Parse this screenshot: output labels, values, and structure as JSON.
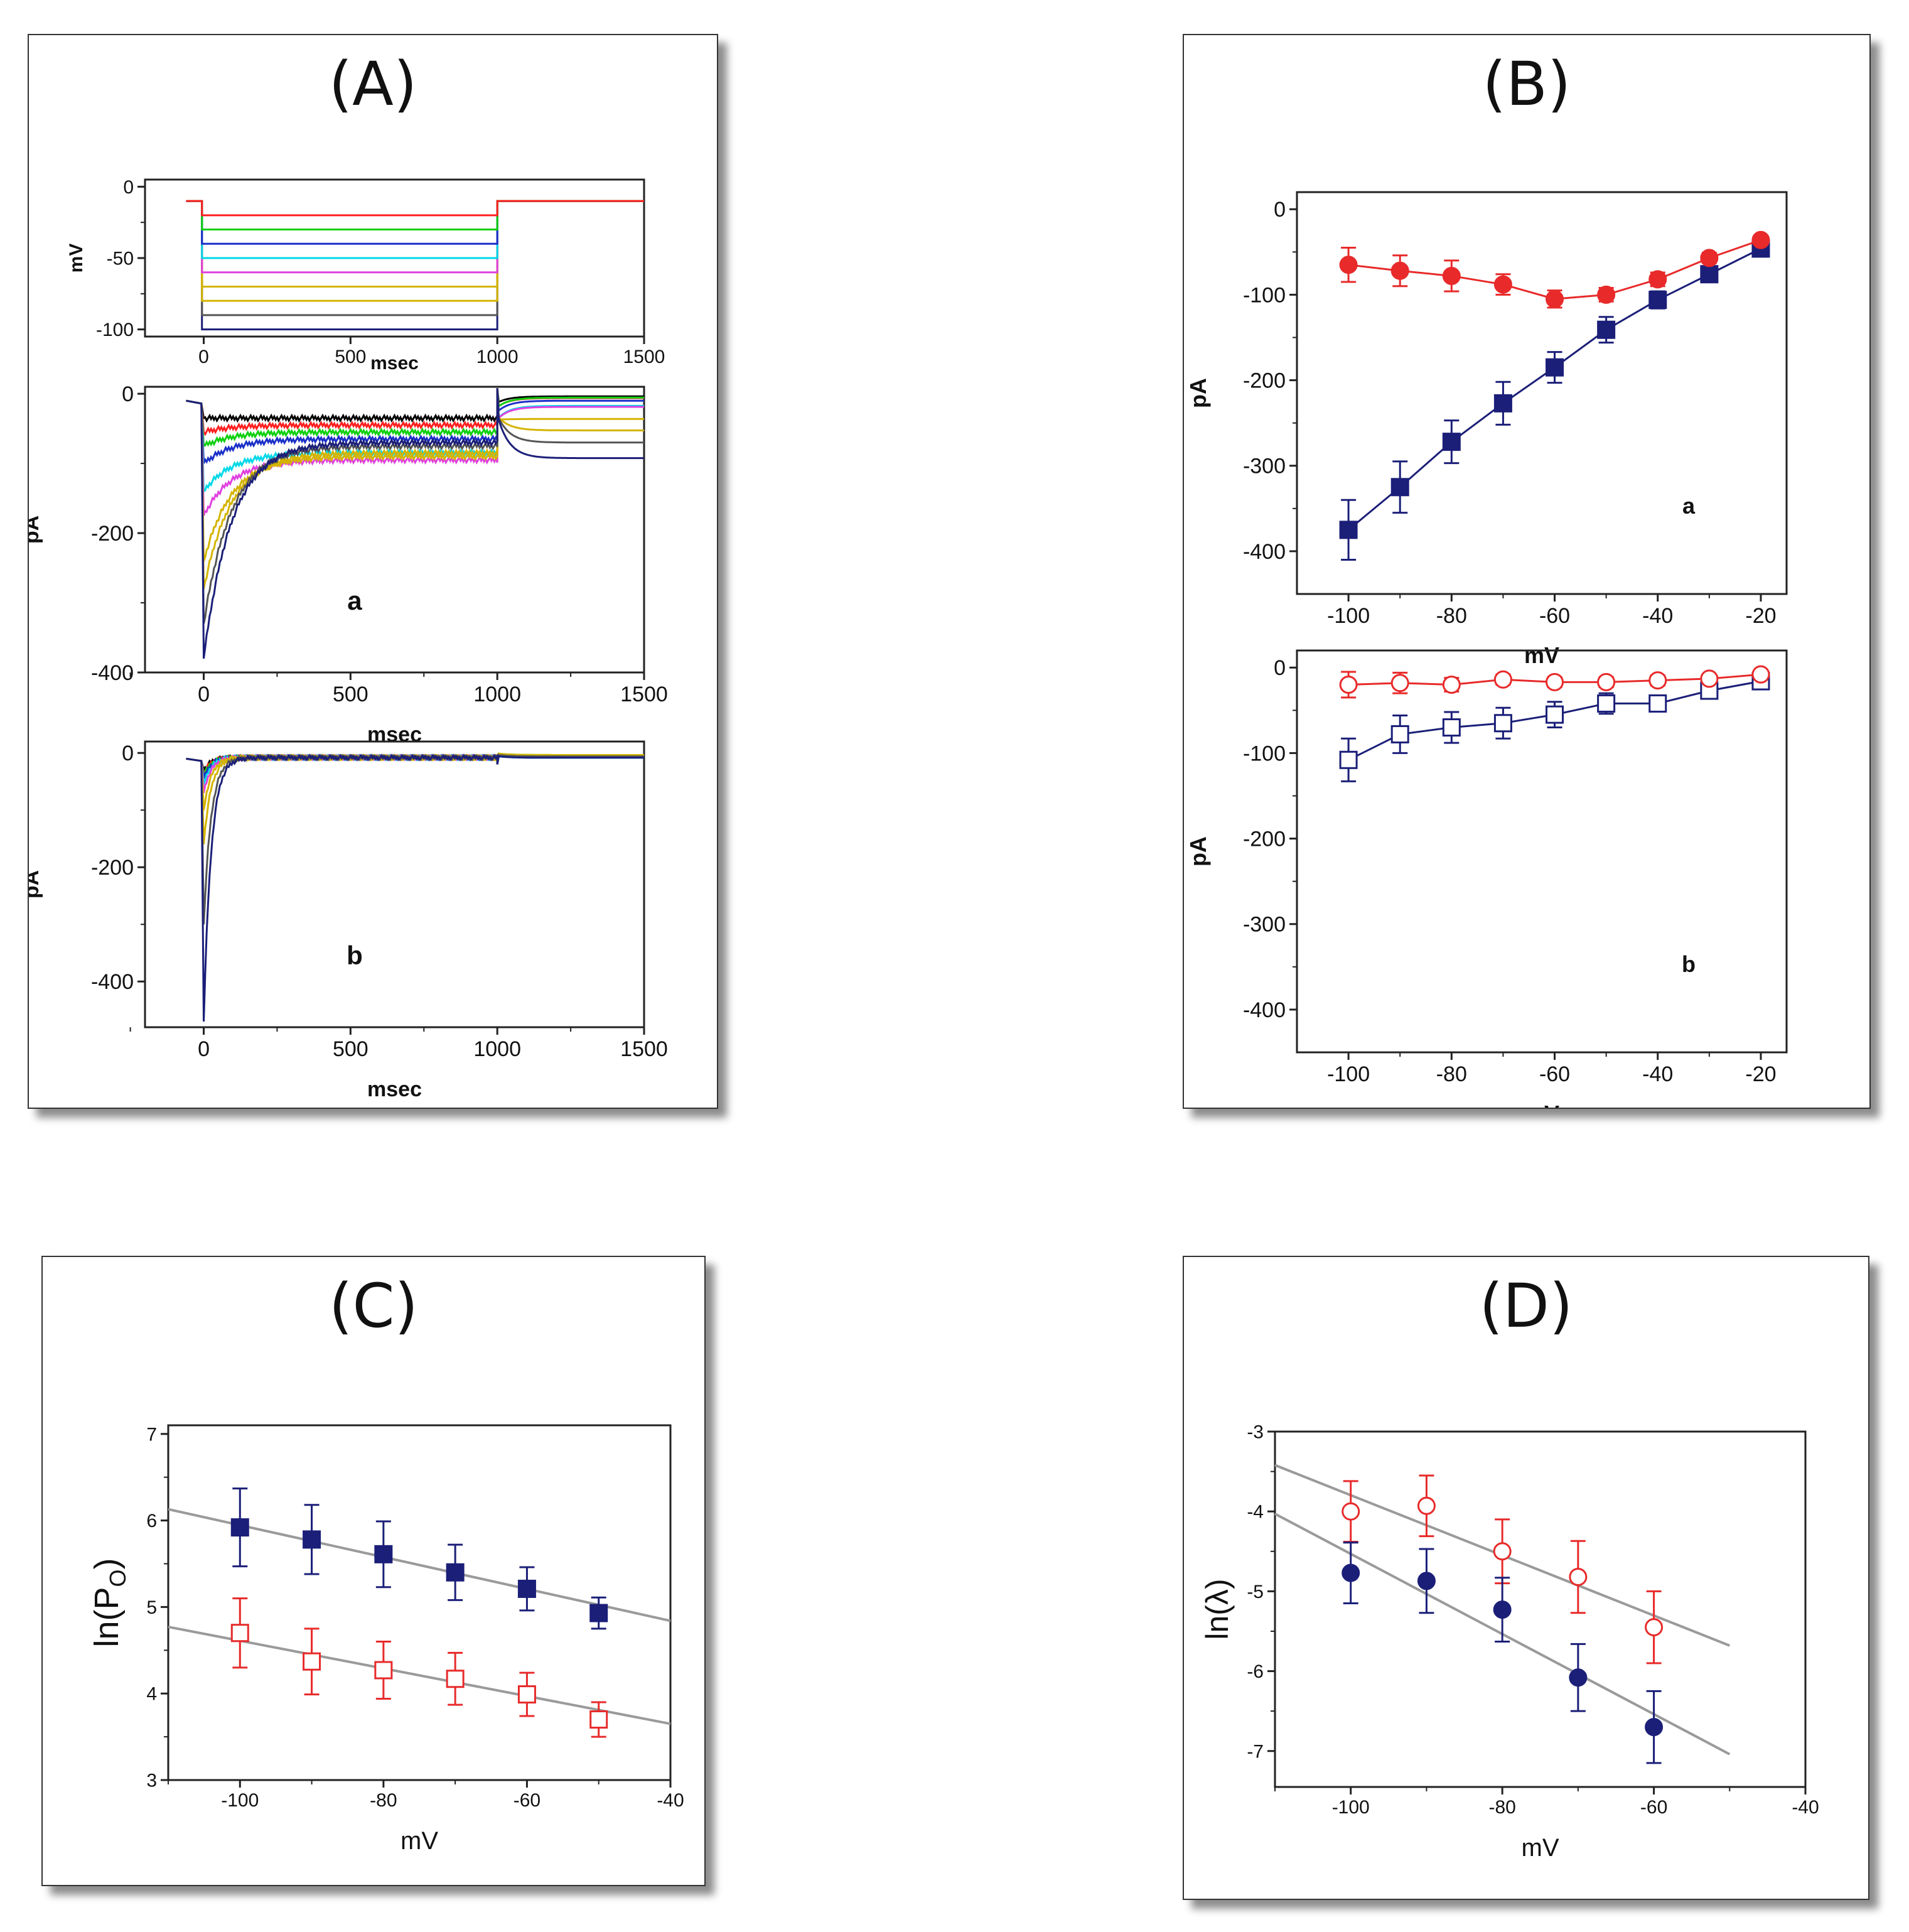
{
  "colors": {
    "navy": "#1b1f78",
    "red": "#e82a2a",
    "gray": "#9a9a9a",
    "axis": "#222222"
  },
  "panelA": {
    "title": "(A)",
    "trace_colors": [
      "#1b1f78",
      "#555555",
      "#d4b400",
      "#d4b400",
      "#e040e0",
      "#00d8e8",
      "#1b30c8",
      "#10d010",
      "#ff2020",
      "#000000"
    ],
    "top": {
      "type": "line",
      "xlabel": "msec",
      "ylabel": "mV",
      "xlim": [
        -200,
        1500
      ],
      "ylim": [
        -105,
        5
      ],
      "xticks": [
        "0",
        "500",
        "1000",
        "1500"
      ],
      "yticks": [
        "0",
        "-50",
        "-100"
      ],
      "holding_potential": -10,
      "step_start": 0,
      "step_end": 1000,
      "step_levels": [
        -100,
        -90,
        -80,
        -70,
        -60,
        -50,
        -40,
        -30,
        -20
      ]
    },
    "a": {
      "type": "line",
      "label": "a",
      "xlabel": "msec",
      "ylabel": "pA",
      "xlim": [
        -200,
        1500
      ],
      "ylim": [
        -400,
        10
      ],
      "xticks": [
        "0",
        "500",
        "1000",
        "1500"
      ],
      "yticks": [
        "0",
        "-200",
        "-400"
      ],
      "peak_current": [
        -380,
        -330,
        -280,
        -240,
        -175,
        -140,
        -100,
        -75,
        -55,
        -35
      ],
      "steady_current": [
        -70,
        -75,
        -85,
        -90,
        -95,
        -85,
        -65,
        -55,
        -45,
        -35
      ],
      "tail_current": [
        -90,
        -70,
        -55,
        -35,
        -20,
        -15,
        -10,
        -8,
        -5,
        -5
      ]
    },
    "b": {
      "type": "line",
      "label": "b",
      "xlabel": "msec",
      "ylabel": "pA",
      "xlim": [
        -200,
        1500
      ],
      "ylim": [
        -480,
        20
      ],
      "xticks": [
        "0",
        "500",
        "1000",
        "1500"
      ],
      "yticks": [
        "0",
        "-200",
        "-400"
      ],
      "peak_current": [
        -470,
        -300,
        -160,
        -100,
        -70,
        -55,
        -45,
        -40,
        -35,
        -30
      ]
    }
  },
  "panelB": {
    "title": "(B)",
    "a": {
      "type": "line",
      "label": "a",
      "xlabel": "mV",
      "ylabel": "pA",
      "xlim": [
        -110,
        -15
      ],
      "ylim": [
        -450,
        20
      ],
      "xticks": [
        "-100",
        "-80",
        "-60",
        "-40",
        "-20"
      ],
      "yticks": [
        "0",
        "-100",
        "-200",
        "-300",
        "-400"
      ],
      "x": [
        -100,
        -90,
        -80,
        -70,
        -60,
        -50,
        -40,
        -30,
        -20
      ],
      "series": [
        {
          "color": "#1b1f78",
          "marker": "filled-square",
          "values": [
            -375,
            -325,
            -272,
            -227,
            -185,
            -141,
            -106,
            -76,
            -46
          ],
          "errors": [
            35,
            30,
            25,
            25,
            18,
            15,
            10,
            8,
            5
          ]
        },
        {
          "color": "#e82a2a",
          "marker": "filled-circle",
          "values": [
            -65,
            -72,
            -78,
            -88,
            -105,
            -100,
            -82,
            -57,
            -36
          ],
          "errors": [
            20,
            18,
            18,
            12,
            10,
            8,
            8,
            6,
            5
          ]
        }
      ]
    },
    "b": {
      "type": "line",
      "label": "b",
      "xlabel": "mV",
      "ylabel": "pA",
      "xlim": [
        -110,
        -15
      ],
      "ylim": [
        -450,
        20
      ],
      "xticks": [
        "-100",
        "-80",
        "-60",
        "-40",
        "-20"
      ],
      "yticks": [
        "0",
        "-100",
        "-200",
        "-300",
        "-400"
      ],
      "x": [
        -100,
        -90,
        -80,
        -70,
        -60,
        -50,
        -40,
        -30,
        -20
      ],
      "series": [
        {
          "color": "#1b1f78",
          "marker": "open-square",
          "values": [
            -108,
            -78,
            -70,
            -65,
            -55,
            -42,
            -42,
            -27,
            -16
          ],
          "errors": [
            25,
            22,
            18,
            18,
            15,
            12,
            8,
            6,
            5
          ]
        },
        {
          "color": "#e82a2a",
          "marker": "open-circle",
          "values": [
            -20,
            -18,
            -20,
            -14,
            -17,
            -17,
            -15,
            -13,
            -8
          ],
          "errors": [
            15,
            12,
            8,
            6,
            6,
            6,
            6,
            5,
            4
          ]
        }
      ]
    }
  },
  "panelC": {
    "title": "(C)",
    "type": "scatter",
    "xlabel": "mV",
    "ylabel_prefix": "ln(P",
    "ylabel_sub": "O",
    "ylabel_suffix": ")",
    "xlim": [
      -110,
      -40
    ],
    "ylim": [
      3,
      7.1
    ],
    "xticks": [
      "-100",
      "-80",
      "-60",
      "-40"
    ],
    "yticks": [
      "3",
      "4",
      "5",
      "6",
      "7"
    ],
    "x": [
      -100,
      -90,
      -80,
      -70,
      -60,
      -50
    ],
    "series": [
      {
        "color": "#1b1f78",
        "marker": "filled-square",
        "values": [
          5.92,
          5.78,
          5.61,
          5.4,
          5.21,
          4.93
        ],
        "errors": [
          0.45,
          0.4,
          0.38,
          0.32,
          0.25,
          0.18
        ],
        "fit": {
          "x": [
            -110,
            -40
          ],
          "y": [
            6.13,
            4.84
          ]
        }
      },
      {
        "color": "#e82a2a",
        "marker": "open-square",
        "values": [
          4.7,
          4.37,
          4.27,
          4.17,
          3.99,
          3.7
        ],
        "errors": [
          0.4,
          0.38,
          0.33,
          0.3,
          0.25,
          0.2
        ],
        "fit": {
          "x": [
            -110,
            -40
          ],
          "y": [
            4.77,
            3.65
          ]
        }
      }
    ]
  },
  "panelD": {
    "title": "(D)",
    "type": "scatter",
    "xlabel": "mV",
    "ylabel": "ln(λ)",
    "xlim": [
      -110,
      -40
    ],
    "ylim": [
      -7.45,
      -3
    ],
    "xticks": [
      "-100",
      "-80",
      "-60",
      "-40"
    ],
    "yticks": [
      "-3",
      "-4",
      "-5",
      "-6",
      "-7"
    ],
    "x": [
      -100,
      -90,
      -80,
      -70,
      -60
    ],
    "series": [
      {
        "color": "#e82a2a",
        "marker": "open-circle",
        "values": [
          -4.0,
          -3.93,
          -4.5,
          -4.82,
          -5.45
        ],
        "errors": [
          0.38,
          0.38,
          0.4,
          0.45,
          0.45
        ],
        "fit": {
          "x": [
            -110,
            -50
          ],
          "y": [
            -3.42,
            -5.68
          ]
        }
      },
      {
        "color": "#1b1f78",
        "marker": "filled-circle",
        "values": [
          -4.77,
          -4.87,
          -5.23,
          -6.08,
          -6.7
        ],
        "errors": [
          0.38,
          0.4,
          0.4,
          0.42,
          0.45
        ],
        "fit": {
          "x": [
            -110,
            -50
          ],
          "y": [
            -4.03,
            -7.04
          ]
        }
      }
    ]
  }
}
